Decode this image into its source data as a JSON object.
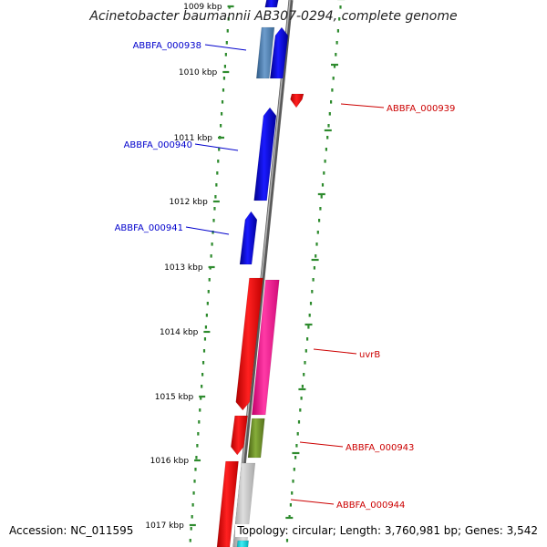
{
  "title": "Acinetobacter baumannii AB307-0294, complete genome",
  "footer": {
    "accession": "Accession: NC_011595",
    "topology": "Topology: circular; Length: 3,760,981 bp; Genes: 3,542"
  },
  "colors": {
    "backbone": "#7a7a7a",
    "tick_ring": "#2e8b2e",
    "forward_cds": "#0000ee",
    "reverse_cds": "#ee0000",
    "steelblue_cds": "#4f7fb0",
    "pink_cds": "#ff1493",
    "olive_cds": "#6b8e23",
    "gray_cds": "#bdbdbd",
    "cyan_cds": "#00c8d0",
    "forward_label": "#0000cc",
    "reverse_label": "#cc0000"
  },
  "kbp_labels": [
    "1009 kbp",
    "1010 kbp",
    "1011 kbp",
    "1012 kbp",
    "1013 kbp",
    "1014 kbp",
    "1015 kbp",
    "1016 kbp",
    "1017 kbp"
  ],
  "gene_labels": [
    {
      "text": "ABBFA_000938",
      "strand": "forward"
    },
    {
      "text": "ABBFA_000939",
      "strand": "reverse"
    },
    {
      "text": "ABBFA_000940",
      "strand": "forward"
    },
    {
      "text": "ABBFA_000941",
      "strand": "forward"
    },
    {
      "text": "uvrB",
      "strand": "reverse"
    },
    {
      "text": "ABBFA_000943",
      "strand": "reverse"
    },
    {
      "text": "ABBFA_000944",
      "strand": "reverse"
    }
  ]
}
